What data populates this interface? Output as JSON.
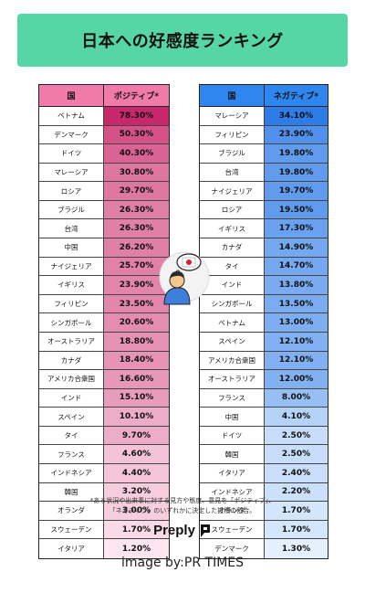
{
  "title": "日本への好感度ランキング",
  "chart_data": [
    {
      "type": "table",
      "headers": [
        "国",
        "ポジティブ*"
      ],
      "rows": [
        {
          "country": "ベトナム",
          "value": "78.30%",
          "v": 78.3
        },
        {
          "country": "デンマーク",
          "value": "50.30%",
          "v": 50.3
        },
        {
          "country": "ドイツ",
          "value": "40.30%",
          "v": 40.3
        },
        {
          "country": "マレーシア",
          "value": "30.80%",
          "v": 30.8
        },
        {
          "country": "ロシア",
          "value": "29.70%",
          "v": 29.7
        },
        {
          "country": "ブラジル",
          "value": "26.30%",
          "v": 26.3
        },
        {
          "country": "台湾",
          "value": "26.30%",
          "v": 26.3
        },
        {
          "country": "中国",
          "value": "26.20%",
          "v": 26.2
        },
        {
          "country": "ナイジェリア",
          "value": "25.70%",
          "v": 25.7
        },
        {
          "country": "イギリス",
          "value": "23.90%",
          "v": 23.9
        },
        {
          "country": "フィリピン",
          "value": "23.50%",
          "v": 23.5
        },
        {
          "country": "シンガポール",
          "value": "20.60%",
          "v": 20.6
        },
        {
          "country": "オーストラリア",
          "value": "18.80%",
          "v": 18.8
        },
        {
          "country": "カナダ",
          "value": "18.40%",
          "v": 18.4
        },
        {
          "country": "アメリカ合衆国",
          "value": "16.60%",
          "v": 16.6
        },
        {
          "country": "インド",
          "value": "15.10%",
          "v": 15.1
        },
        {
          "country": "スペイン",
          "value": "10.10%",
          "v": 10.1
        },
        {
          "country": "タイ",
          "value": "9.70%",
          "v": 9.7
        },
        {
          "country": "フランス",
          "value": "4.60%",
          "v": 4.6
        },
        {
          "country": "インドネシア",
          "value": "4.40%",
          "v": 4.4
        },
        {
          "country": "韓国",
          "value": "3.20%",
          "v": 3.2
        },
        {
          "country": "オランダ",
          "value": "3.00%",
          "v": 3.0
        },
        {
          "country": "スウェーデン",
          "value": "1.70%",
          "v": 1.7
        },
        {
          "country": "イタリア",
          "value": "1.20%",
          "v": 1.2
        }
      ]
    },
    {
      "type": "table",
      "headers": [
        "国",
        "ネガティブ*"
      ],
      "rows": [
        {
          "country": "マレーシア",
          "value": "34.10%",
          "v": 34.1
        },
        {
          "country": "フィリピン",
          "value": "23.90%",
          "v": 23.9
        },
        {
          "country": "ブラジル",
          "value": "19.80%",
          "v": 19.8
        },
        {
          "country": "台湾",
          "value": "19.80%",
          "v": 19.8
        },
        {
          "country": "ナイジェリア",
          "value": "19.70%",
          "v": 19.7
        },
        {
          "country": "ロシア",
          "value": "19.50%",
          "v": 19.5
        },
        {
          "country": "イギリス",
          "value": "17.30%",
          "v": 17.3
        },
        {
          "country": "カナダ",
          "value": "14.90%",
          "v": 14.9
        },
        {
          "country": "タイ",
          "value": "14.70%",
          "v": 14.7
        },
        {
          "country": "インド",
          "value": "13.80%",
          "v": 13.8
        },
        {
          "country": "シンガポール",
          "value": "13.50%",
          "v": 13.5
        },
        {
          "country": "ベトナム",
          "value": "13.00%",
          "v": 13.0
        },
        {
          "country": "スペイン",
          "value": "12.10%",
          "v": 12.1
        },
        {
          "country": "アメリカ合衆国",
          "value": "12.10%",
          "v": 12.1
        },
        {
          "country": "オーストラリア",
          "value": "12.00%",
          "v": 12.0
        },
        {
          "country": "フランス",
          "value": "8.00%",
          "v": 8.0
        },
        {
          "country": "中国",
          "value": "4.10%",
          "v": 4.1
        },
        {
          "country": "ドイツ",
          "value": "2.50%",
          "v": 2.5
        },
        {
          "country": "韓国",
          "value": "2.50%",
          "v": 2.5
        },
        {
          "country": "イタリア",
          "value": "2.40%",
          "v": 2.4
        },
        {
          "country": "インドネシア",
          "value": "2.20%",
          "v": 2.2
        },
        {
          "country": "オランダ",
          "value": "1.70%",
          "v": 1.7
        },
        {
          "country": "スウェーデン",
          "value": "1.70%",
          "v": 1.7
        },
        {
          "country": "デンマーク",
          "value": "1.30%",
          "v": 1.3
        }
      ]
    }
  ],
  "colors": {
    "title_bg": "#56d6a5",
    "positive_header": "#f07aa8",
    "positive_max": "#c8286b",
    "positive_min": "#fde6ef",
    "negative_header": "#2f86ef",
    "negative_max": "#2f7be8",
    "negative_min": "#e4f0fd"
  },
  "footnote": {
    "line1": "*ある状況や出来事に対する見方や態度、意見を「ポジティブ」、",
    "line2": "「ネガティブ」のいずれかに決定した投稿の割合。"
  },
  "logo": {
    "text": "Preply",
    "icon": "preply-mark-icon"
  },
  "credit": "image by:PR TIMES"
}
